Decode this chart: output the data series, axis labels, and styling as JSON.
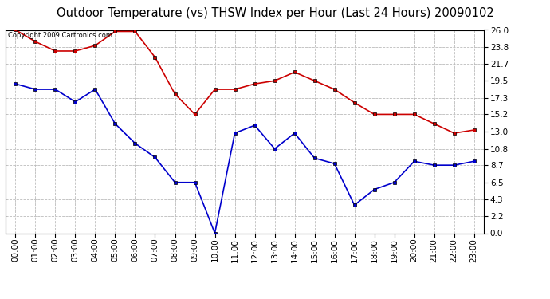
{
  "title": "Outdoor Temperature (vs) THSW Index per Hour (Last 24 Hours) 20090102",
  "copyright_text": "Copyright 2009 Cartronics.com",
  "hours": [
    0,
    1,
    2,
    3,
    4,
    5,
    6,
    7,
    8,
    9,
    10,
    11,
    12,
    13,
    14,
    15,
    16,
    17,
    18,
    19,
    20,
    21,
    22,
    23
  ],
  "hour_labels": [
    "00:00",
    "01:00",
    "02:00",
    "03:00",
    "04:00",
    "05:00",
    "06:00",
    "07:00",
    "08:00",
    "09:00",
    "10:00",
    "11:00",
    "12:00",
    "13:00",
    "14:00",
    "15:00",
    "16:00",
    "17:00",
    "18:00",
    "19:00",
    "20:00",
    "21:00",
    "22:00",
    "23:00"
  ],
  "red_data": [
    26.0,
    24.5,
    23.3,
    23.3,
    24.0,
    25.8,
    25.8,
    22.5,
    17.8,
    15.2,
    18.4,
    18.4,
    19.1,
    19.5,
    20.6,
    19.5,
    18.4,
    16.7,
    15.2,
    15.2,
    15.2,
    14.0,
    12.8,
    13.2
  ],
  "blue_data": [
    19.1,
    18.4,
    18.4,
    16.8,
    18.4,
    14.0,
    11.5,
    9.7,
    6.5,
    6.5,
    0.0,
    12.8,
    13.8,
    10.8,
    12.8,
    9.6,
    8.9,
    3.6,
    5.6,
    6.5,
    9.2,
    8.7,
    8.7,
    9.2
  ],
  "red_color": "#cc0000",
  "blue_color": "#0000cc",
  "marker_color": "#000000",
  "marker_size": 3,
  "line_width": 1.2,
  "yticks": [
    0.0,
    2.2,
    4.3,
    6.5,
    8.7,
    10.8,
    13.0,
    15.2,
    17.3,
    19.5,
    21.7,
    23.8,
    26.0
  ],
  "ylim": [
    0.0,
    26.0
  ],
  "background_color": "#ffffff",
  "grid_color": "#bbbbbb",
  "title_fontsize": 10.5,
  "tick_fontsize": 7.5,
  "copyright_fontsize": 6
}
